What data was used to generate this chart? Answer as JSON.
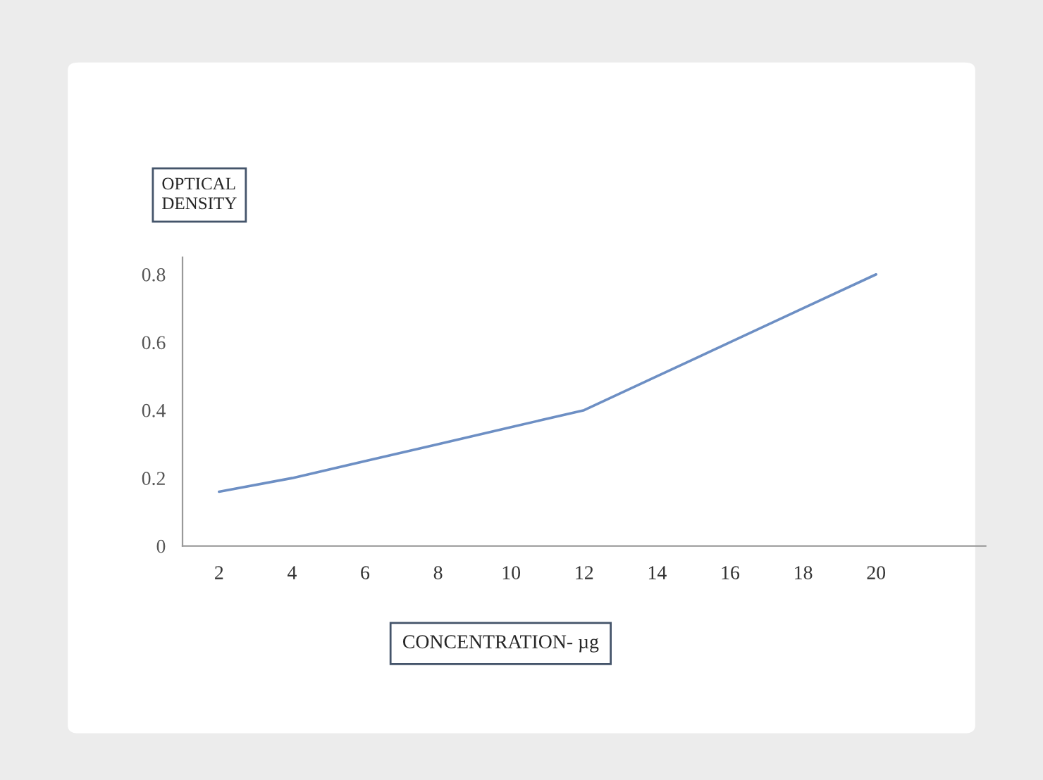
{
  "chart_data": {
    "type": "line",
    "xlabel": "CONCENTRATION- µg",
    "ylabel": "OPTICAL\nDENSITY",
    "categories": [
      "2",
      "4",
      "6",
      "8",
      "10",
      "12",
      "14",
      "16",
      "18",
      "20",
      null
    ],
    "series": [
      {
        "color": "#6d8fc4",
        "values": [
          0.16,
          0.2,
          0.25,
          0.3,
          0.35,
          0.4,
          0.5,
          0.6,
          0.7,
          0.8,
          null
        ]
      }
    ],
    "ylim": [
      0,
      0.85
    ],
    "yticks": [
      0,
      0.2,
      0.4,
      0.6,
      0.8
    ],
    "grid": false,
    "marker": "none",
    "line_style": "solid"
  }
}
